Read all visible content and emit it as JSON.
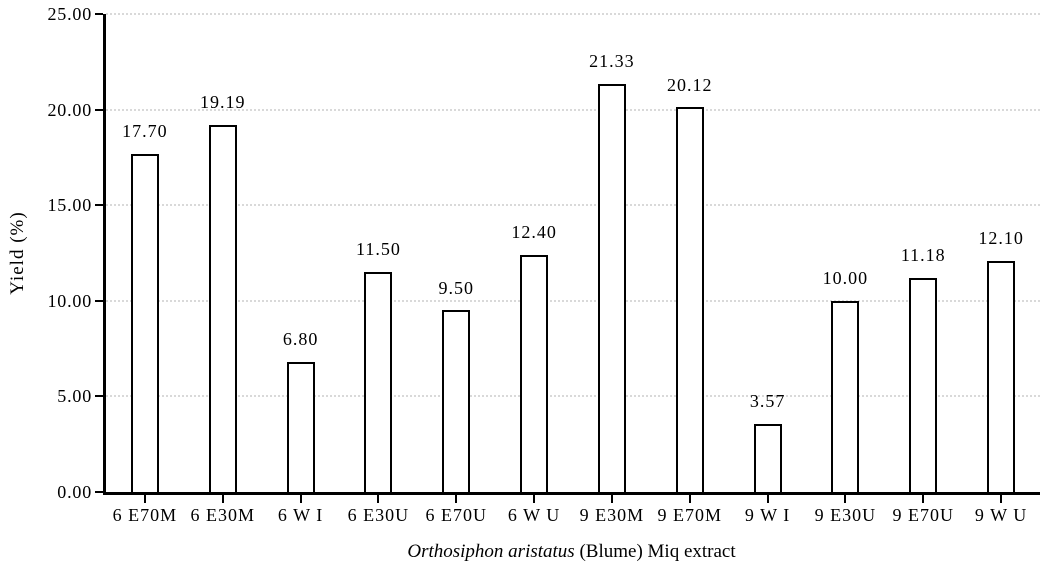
{
  "chart_data": {
    "type": "bar",
    "categories": [
      "6 E70M",
      "6 E30M",
      "6 W I",
      "6 E30U",
      "6 E70U",
      "6 W U",
      "9 E30M",
      "9 E70M",
      "9 W I",
      "9 E30U",
      "9 E70U",
      "9 W U"
    ],
    "values": [
      17.7,
      19.19,
      6.8,
      11.5,
      9.5,
      12.4,
      21.33,
      20.12,
      3.57,
      10.0,
      11.18,
      12.1
    ],
    "value_labels": [
      "17.70",
      "19.19",
      "6.80",
      "11.50",
      "9.50",
      "12.40",
      "21.33",
      "20.12",
      "3.57",
      "10.00",
      "11.18",
      "12.10"
    ],
    "ylabel": "Yield (%)",
    "xlabel_italic": "Orthosiphon aristatus",
    "xlabel_rest": " (Blume) Miq extract",
    "ylim": [
      0,
      25
    ],
    "ytick_step": 5,
    "ytick_labels": [
      "0.00",
      "5.00",
      "10.00",
      "15.00",
      "20.00",
      "25.00"
    ],
    "grid": "horizontal-dotted",
    "legend": "none",
    "grid_color": "#d9d9d9",
    "axis_color": "#000000",
    "bar_fill": "#ffffff",
    "bar_border": "#000000"
  }
}
